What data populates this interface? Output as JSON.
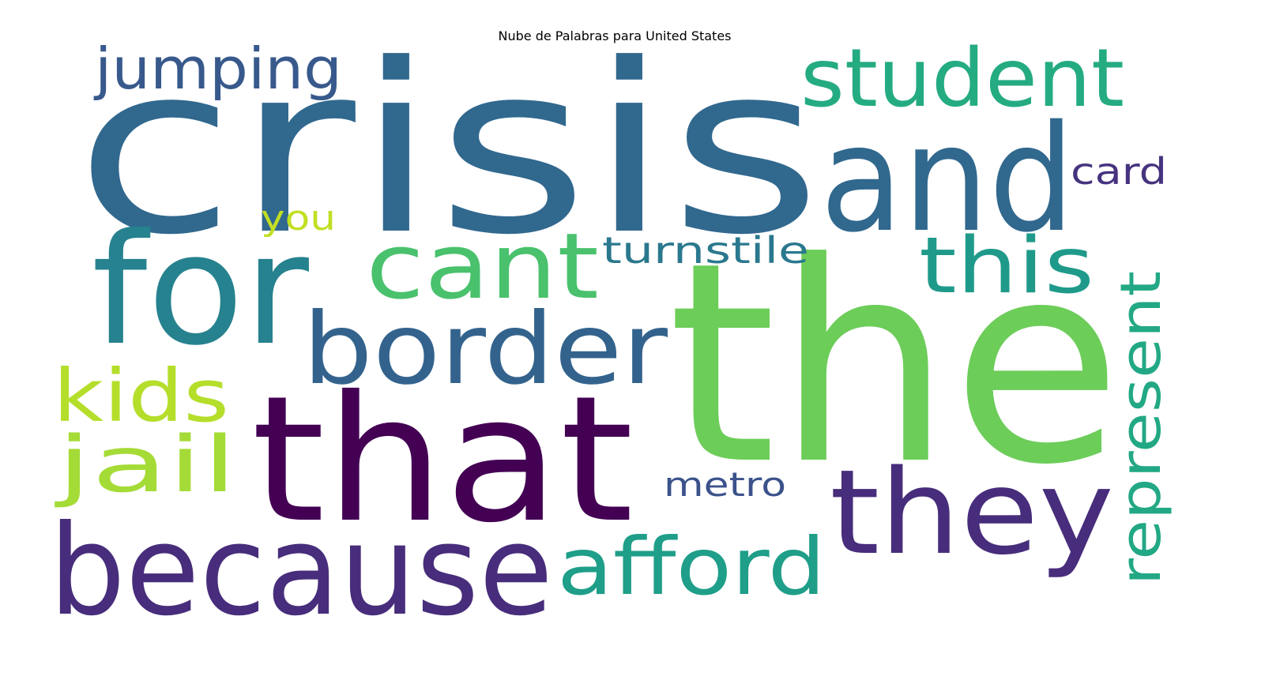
{
  "title": "Nube de Palabras para United States",
  "words": [
    {
      "text": "crisis",
      "color": "#31688e"
    },
    {
      "text": "the",
      "color": "#6ccd59"
    },
    {
      "text": "that",
      "color": "#440154"
    },
    {
      "text": "and",
      "color": "#31688e"
    },
    {
      "text": "because",
      "color": "#472d7b"
    },
    {
      "text": "for",
      "color": "#26828e"
    },
    {
      "text": "they",
      "color": "#472d7b"
    },
    {
      "text": "border",
      "color": "#33638d"
    },
    {
      "text": "cant",
      "color": "#4ac16d"
    },
    {
      "text": "student",
      "color": "#25ab82"
    },
    {
      "text": "afford",
      "color": "#1f9e89"
    },
    {
      "text": "this",
      "color": "#1f9a8a"
    },
    {
      "text": "represent",
      "color": "#22a884"
    },
    {
      "text": "kids",
      "color": "#b5de2b"
    },
    {
      "text": "jail",
      "color": "#a5db36"
    },
    {
      "text": "jumping",
      "color": "#38598c"
    },
    {
      "text": "turnstile",
      "color": "#2a788e"
    },
    {
      "text": "metro",
      "color": "#3b528b"
    },
    {
      "text": "card",
      "color": "#46337f"
    },
    {
      "text": "you",
      "color": "#c2df23"
    }
  ]
}
